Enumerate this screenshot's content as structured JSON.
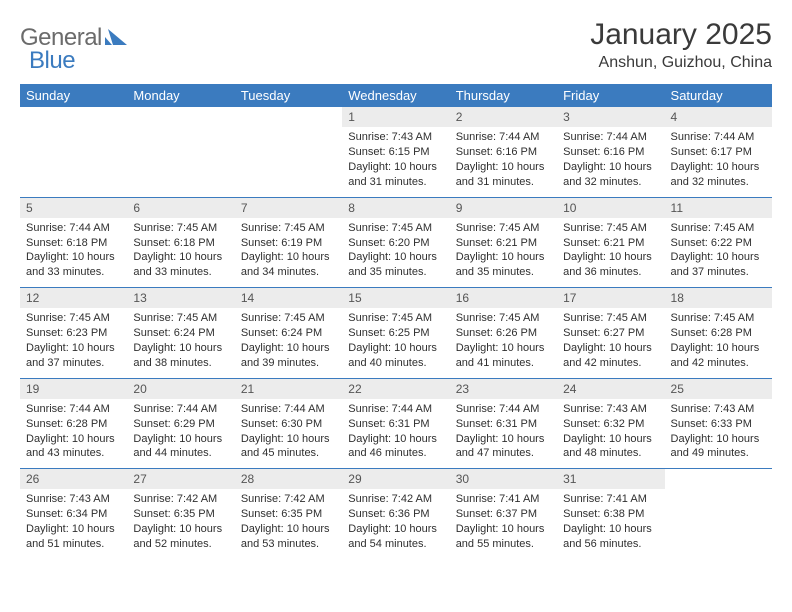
{
  "brand": {
    "part1": "General",
    "part2": "Blue"
  },
  "colors": {
    "brand_blue": "#3b7bbf",
    "brand_gray": "#6b6b6b",
    "header_bg": "#3b7bbf",
    "header_fg": "#ffffff",
    "daynum_bg": "#ececec",
    "daynum_fg": "#555555",
    "text": "#2f2f2f",
    "page_bg": "#ffffff",
    "row_border": "#3b7bbf"
  },
  "typography": {
    "title_fontsize": 30,
    "subtitle_fontsize": 16,
    "header_fontsize": 13,
    "body_fontsize": 11,
    "daynum_fontsize": 12,
    "logo_fontsize": 24
  },
  "title": "January 2025",
  "location": "Anshun, Guizhou, China",
  "weekdays": [
    "Sunday",
    "Monday",
    "Tuesday",
    "Wednesday",
    "Thursday",
    "Friday",
    "Saturday"
  ],
  "weeks": [
    [
      null,
      null,
      null,
      {
        "day": "1",
        "sunrise": "Sunrise: 7:43 AM",
        "sunset": "Sunset: 6:15 PM",
        "daylight": "Daylight: 10 hours and 31 minutes."
      },
      {
        "day": "2",
        "sunrise": "Sunrise: 7:44 AM",
        "sunset": "Sunset: 6:16 PM",
        "daylight": "Daylight: 10 hours and 31 minutes."
      },
      {
        "day": "3",
        "sunrise": "Sunrise: 7:44 AM",
        "sunset": "Sunset: 6:16 PM",
        "daylight": "Daylight: 10 hours and 32 minutes."
      },
      {
        "day": "4",
        "sunrise": "Sunrise: 7:44 AM",
        "sunset": "Sunset: 6:17 PM",
        "daylight": "Daylight: 10 hours and 32 minutes."
      }
    ],
    [
      {
        "day": "5",
        "sunrise": "Sunrise: 7:44 AM",
        "sunset": "Sunset: 6:18 PM",
        "daylight": "Daylight: 10 hours and 33 minutes."
      },
      {
        "day": "6",
        "sunrise": "Sunrise: 7:45 AM",
        "sunset": "Sunset: 6:18 PM",
        "daylight": "Daylight: 10 hours and 33 minutes."
      },
      {
        "day": "7",
        "sunrise": "Sunrise: 7:45 AM",
        "sunset": "Sunset: 6:19 PM",
        "daylight": "Daylight: 10 hours and 34 minutes."
      },
      {
        "day": "8",
        "sunrise": "Sunrise: 7:45 AM",
        "sunset": "Sunset: 6:20 PM",
        "daylight": "Daylight: 10 hours and 35 minutes."
      },
      {
        "day": "9",
        "sunrise": "Sunrise: 7:45 AM",
        "sunset": "Sunset: 6:21 PM",
        "daylight": "Daylight: 10 hours and 35 minutes."
      },
      {
        "day": "10",
        "sunrise": "Sunrise: 7:45 AM",
        "sunset": "Sunset: 6:21 PM",
        "daylight": "Daylight: 10 hours and 36 minutes."
      },
      {
        "day": "11",
        "sunrise": "Sunrise: 7:45 AM",
        "sunset": "Sunset: 6:22 PM",
        "daylight": "Daylight: 10 hours and 37 minutes."
      }
    ],
    [
      {
        "day": "12",
        "sunrise": "Sunrise: 7:45 AM",
        "sunset": "Sunset: 6:23 PM",
        "daylight": "Daylight: 10 hours and 37 minutes."
      },
      {
        "day": "13",
        "sunrise": "Sunrise: 7:45 AM",
        "sunset": "Sunset: 6:24 PM",
        "daylight": "Daylight: 10 hours and 38 minutes."
      },
      {
        "day": "14",
        "sunrise": "Sunrise: 7:45 AM",
        "sunset": "Sunset: 6:24 PM",
        "daylight": "Daylight: 10 hours and 39 minutes."
      },
      {
        "day": "15",
        "sunrise": "Sunrise: 7:45 AM",
        "sunset": "Sunset: 6:25 PM",
        "daylight": "Daylight: 10 hours and 40 minutes."
      },
      {
        "day": "16",
        "sunrise": "Sunrise: 7:45 AM",
        "sunset": "Sunset: 6:26 PM",
        "daylight": "Daylight: 10 hours and 41 minutes."
      },
      {
        "day": "17",
        "sunrise": "Sunrise: 7:45 AM",
        "sunset": "Sunset: 6:27 PM",
        "daylight": "Daylight: 10 hours and 42 minutes."
      },
      {
        "day": "18",
        "sunrise": "Sunrise: 7:45 AM",
        "sunset": "Sunset: 6:28 PM",
        "daylight": "Daylight: 10 hours and 42 minutes."
      }
    ],
    [
      {
        "day": "19",
        "sunrise": "Sunrise: 7:44 AM",
        "sunset": "Sunset: 6:28 PM",
        "daylight": "Daylight: 10 hours and 43 minutes."
      },
      {
        "day": "20",
        "sunrise": "Sunrise: 7:44 AM",
        "sunset": "Sunset: 6:29 PM",
        "daylight": "Daylight: 10 hours and 44 minutes."
      },
      {
        "day": "21",
        "sunrise": "Sunrise: 7:44 AM",
        "sunset": "Sunset: 6:30 PM",
        "daylight": "Daylight: 10 hours and 45 minutes."
      },
      {
        "day": "22",
        "sunrise": "Sunrise: 7:44 AM",
        "sunset": "Sunset: 6:31 PM",
        "daylight": "Daylight: 10 hours and 46 minutes."
      },
      {
        "day": "23",
        "sunrise": "Sunrise: 7:44 AM",
        "sunset": "Sunset: 6:31 PM",
        "daylight": "Daylight: 10 hours and 47 minutes."
      },
      {
        "day": "24",
        "sunrise": "Sunrise: 7:43 AM",
        "sunset": "Sunset: 6:32 PM",
        "daylight": "Daylight: 10 hours and 48 minutes."
      },
      {
        "day": "25",
        "sunrise": "Sunrise: 7:43 AM",
        "sunset": "Sunset: 6:33 PM",
        "daylight": "Daylight: 10 hours and 49 minutes."
      }
    ],
    [
      {
        "day": "26",
        "sunrise": "Sunrise: 7:43 AM",
        "sunset": "Sunset: 6:34 PM",
        "daylight": "Daylight: 10 hours and 51 minutes."
      },
      {
        "day": "27",
        "sunrise": "Sunrise: 7:42 AM",
        "sunset": "Sunset: 6:35 PM",
        "daylight": "Daylight: 10 hours and 52 minutes."
      },
      {
        "day": "28",
        "sunrise": "Sunrise: 7:42 AM",
        "sunset": "Sunset: 6:35 PM",
        "daylight": "Daylight: 10 hours and 53 minutes."
      },
      {
        "day": "29",
        "sunrise": "Sunrise: 7:42 AM",
        "sunset": "Sunset: 6:36 PM",
        "daylight": "Daylight: 10 hours and 54 minutes."
      },
      {
        "day": "30",
        "sunrise": "Sunrise: 7:41 AM",
        "sunset": "Sunset: 6:37 PM",
        "daylight": "Daylight: 10 hours and 55 minutes."
      },
      {
        "day": "31",
        "sunrise": "Sunrise: 7:41 AM",
        "sunset": "Sunset: 6:38 PM",
        "daylight": "Daylight: 10 hours and 56 minutes."
      },
      null
    ]
  ]
}
